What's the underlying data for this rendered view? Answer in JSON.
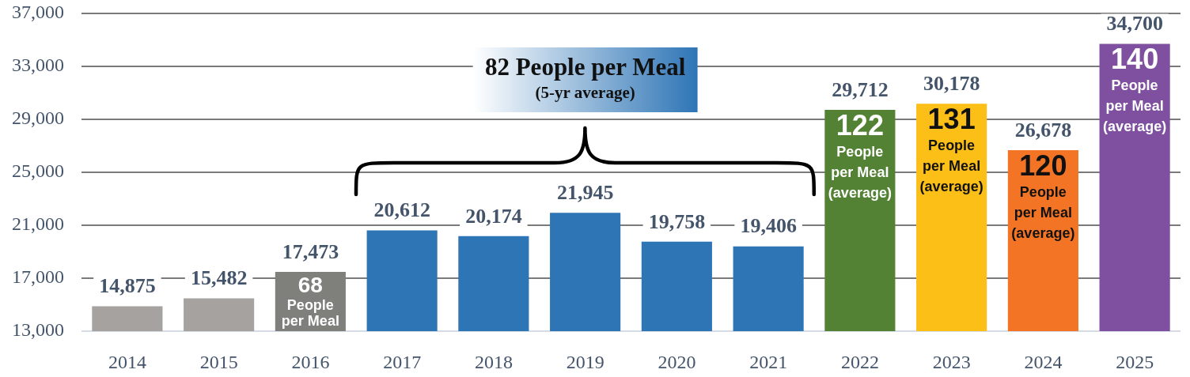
{
  "chart_data": {
    "type": "bar",
    "categories": [
      "2014",
      "2015",
      "2016",
      "2017",
      "2018",
      "2019",
      "2020",
      "2021",
      "2022",
      "2023",
      "2024",
      "2025"
    ],
    "values": [
      14875,
      15482,
      17473,
      20612,
      20174,
      21945,
      19758,
      19406,
      29712,
      30178,
      26678,
      34700
    ],
    "colors": [
      "#a5a2a0",
      "#a5a2a0",
      "#7f7f7c",
      "#2e75b6",
      "#2e75b6",
      "#2e75b6",
      "#2e75b6",
      "#2e75b6",
      "#548235",
      "#fbbf17",
      "#f37424",
      "#7f50a0"
    ],
    "value_labels": [
      "14,875",
      "15,482",
      "17,473",
      "20,612",
      "20,174",
      "21,945",
      "19,758",
      "19,406",
      "29,712",
      "30,178",
      "26,678",
      "34,700"
    ],
    "ylim": [
      13000,
      37000
    ],
    "yticks": [
      {
        "value": 13000,
        "label": "13,000"
      },
      {
        "value": 17000,
        "label": "17,000"
      },
      {
        "value": 21000,
        "label": "21,000"
      },
      {
        "value": 25000,
        "label": "25,000"
      },
      {
        "value": 29000,
        "label": "29,000"
      },
      {
        "value": 33000,
        "label": "33,000"
      },
      {
        "value": 37000,
        "label": "37,000"
      }
    ],
    "grid": "y",
    "annotations": [
      "82 People per Meal\n(5-yr average)",
      {
        "text": "68\nPeople\nper Meal",
        "x": "2016",
        "y": 17473
      },
      {
        "text": "122\nPeople\nper Meal\n(average)",
        "x": "2022",
        "y": 29712
      },
      {
        "text": "131\nPeople\nper Meal\n(average)",
        "x": "2023",
        "y": 30178
      },
      {
        "text": "120\nPeople\nper Meal\n(average)",
        "x": "2024",
        "y": 26678
      },
      {
        "text": "140\nPeople\nper Meal\n(average)",
        "x": "2025",
        "y": 34700
      }
    ]
  }
}
